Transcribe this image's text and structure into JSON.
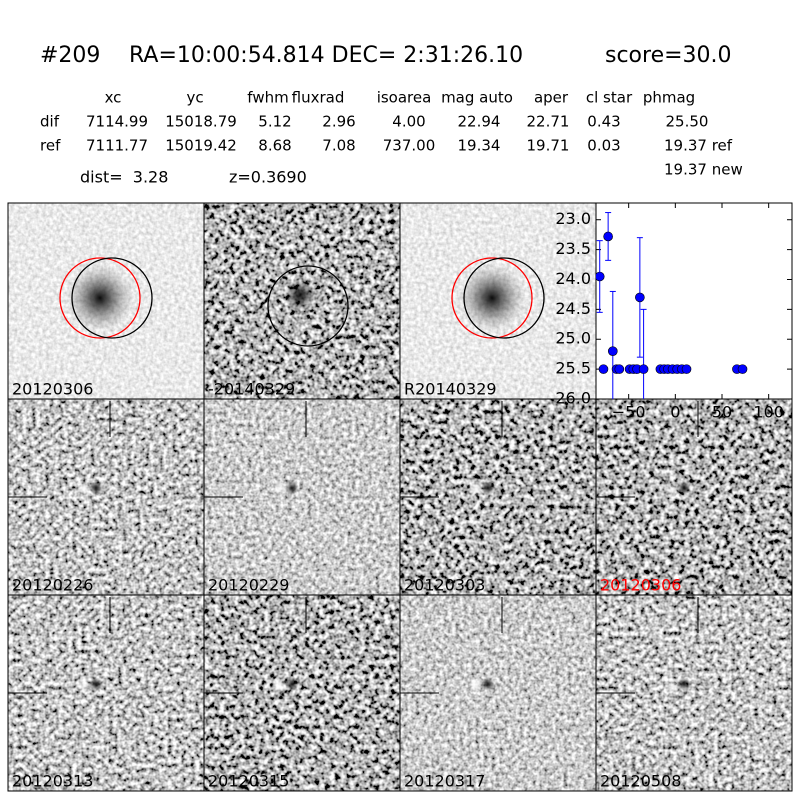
{
  "header": {
    "id": "#209",
    "coords": "RA=10:00:54.814 DEC= 2:31:26.10",
    "score": "score=30.0"
  },
  "table": {
    "columns": [
      "xc",
      "yc",
      "fwhm",
      "fluxrad",
      "isoarea",
      "mag auto",
      "aper",
      "cl star",
      "phmag"
    ],
    "rows": [
      {
        "label": "dif",
        "cells": [
          "7114.99",
          "15018.79",
          "5.12",
          "2.96",
          "4.00",
          "22.94",
          "22.71",
          "0.43",
          "25.50"
        ]
      },
      {
        "label": "ref",
        "cells": [
          "7111.77",
          "15019.42",
          "8.68",
          "7.08",
          "737.00",
          "19.34",
          "19.71",
          "0.03",
          "19.37 ref"
        ]
      }
    ],
    "extra": "19.37 new"
  },
  "info": {
    "dist": "dist=  3.28",
    "z": "z=0.3690"
  },
  "panels": [
    {
      "label": "20120306"
    },
    {
      "label": "-20140329"
    },
    {
      "label": "R20140329"
    },
    {
      "label": "20120226"
    },
    {
      "label": "20120229"
    },
    {
      "label": "20120303"
    },
    {
      "label": "20120306",
      "label_color": "#ff0000"
    },
    {
      "label": "20120313"
    },
    {
      "label": "20120315"
    },
    {
      "label": "20120317"
    },
    {
      "label": "20120508"
    }
  ],
  "chart_data": {
    "type": "scatter",
    "xlim": [
      -85,
      125
    ],
    "ylim": [
      26.0,
      22.72
    ],
    "xticks": [
      {
        "value": -50,
        "label": "−50"
      },
      0,
      50,
      100
    ],
    "yticks": [
      {
        "value": 23.0,
        "label": "23.0"
      },
      {
        "value": 23.5,
        "label": "23.5"
      },
      {
        "value": 24.0,
        "label": "24.0"
      },
      {
        "value": 24.5,
        "label": "24.5"
      },
      {
        "value": 25.0,
        "label": "25.0"
      },
      {
        "value": 25.5,
        "label": "25.5"
      },
      {
        "value": 26.0,
        "label": "26.0"
      }
    ],
    "series": [
      {
        "color": "#0000ff",
        "x": [
          -81,
          -72,
          -77,
          -67,
          -63,
          -60,
          -49,
          -45,
          -41,
          -38,
          -34,
          -16,
          -12,
          -8,
          -3,
          2,
          7,
          12,
          66,
          72
        ],
        "values": [
          23.95,
          23.28,
          25.5,
          25.2,
          25.5,
          25.5,
          25.5,
          25.5,
          25.5,
          24.3,
          25.5,
          25.5,
          25.5,
          25.5,
          25.5,
          25.5,
          25.5,
          25.5,
          25.5,
          25.5
        ],
        "errors": [
          0.6,
          0.4,
          0.05,
          1.0,
          0.05,
          0.05,
          0.05,
          0.05,
          0.05,
          1.0,
          1.0,
          0.05,
          0.05,
          0.05,
          0.05,
          0.05,
          0.05,
          0.05,
          0.05,
          0.05
        ]
      }
    ]
  }
}
